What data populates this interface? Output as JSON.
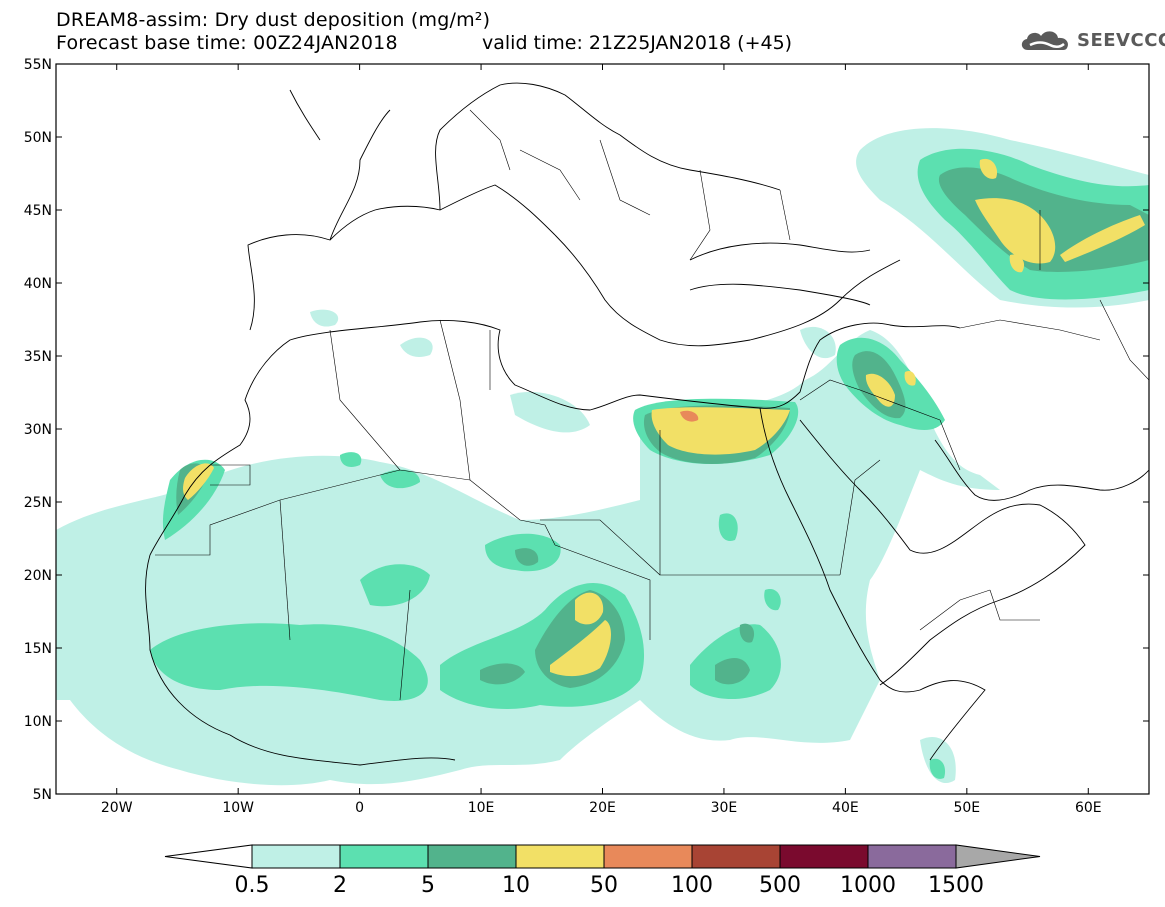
{
  "header": {
    "title": "DREAM8-assim: Dry dust deposition (mg/m²)",
    "base_time": "Forecast base time: 00Z24JAN2018",
    "valid_time": "valid time: 21Z25JAN2018 (+45)"
  },
  "logo": {
    "text": "SEEVCCC",
    "icon": "cloud-logo-icon"
  },
  "map": {
    "lat_labels": [
      "55N",
      "50N",
      "45N",
      "40N",
      "35N",
      "30N",
      "25N",
      "20N",
      "15N",
      "10N",
      "5N"
    ],
    "lat_values": [
      55,
      50,
      45,
      40,
      35,
      30,
      25,
      20,
      15,
      10,
      5
    ],
    "lon_labels": [
      "20W",
      "10W",
      "0",
      "10E",
      "20E",
      "30E",
      "40E",
      "50E",
      "60E"
    ],
    "lon_values": [
      -20,
      -10,
      0,
      10,
      20,
      30,
      40,
      50,
      60
    ],
    "extent": {
      "lon_min": -25,
      "lon_max": 65,
      "lat_min": 5,
      "lat_max": 55
    }
  },
  "legend": {
    "levels": [
      "0.5",
      "2",
      "5",
      "10",
      "50",
      "100",
      "500",
      "1000",
      "1500"
    ],
    "colors": [
      "#ffffff",
      "#bff0e6",
      "#5ce0b0",
      "#52b38c",
      "#f2e066",
      "#e8895a",
      "#a84434",
      "#7a0a2e",
      "#8a6a9c",
      "#a8a8a8"
    ]
  },
  "dust_colors": {
    "lvl1": "#bff0e6",
    "lvl2": "#5ce0b0",
    "lvl3": "#52b38c",
    "lvl4": "#f2e066",
    "lvl5": "#e8895a"
  }
}
